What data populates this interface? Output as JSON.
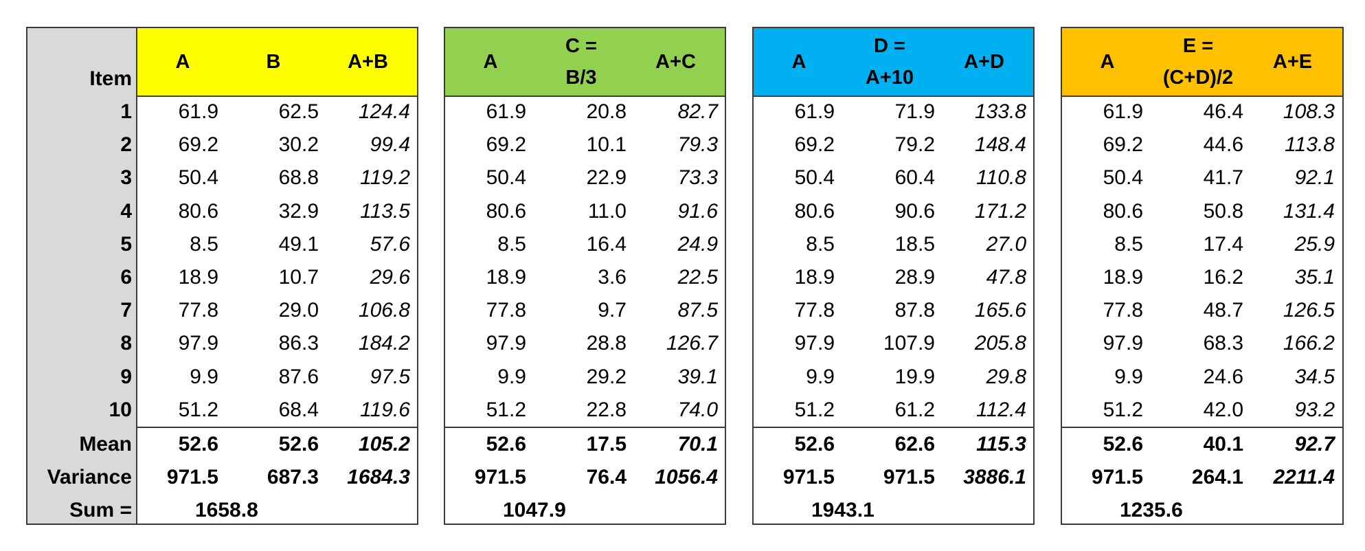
{
  "row_label_header": "Item",
  "items": [
    "1",
    "2",
    "3",
    "4",
    "5",
    "6",
    "7",
    "8",
    "9",
    "10"
  ],
  "stat_labels": {
    "mean": "Mean",
    "variance": "Variance",
    "sum": "Sum ="
  },
  "blocks": [
    {
      "color": "#ffff00",
      "headers": [
        [
          "A"
        ],
        [
          "B"
        ],
        [
          "A+B"
        ]
      ],
      "rows": [
        [
          "61.9",
          "62.5",
          "124.4"
        ],
        [
          "69.2",
          "30.2",
          "99.4"
        ],
        [
          "50.4",
          "68.8",
          "119.2"
        ],
        [
          "80.6",
          "32.9",
          "113.5"
        ],
        [
          "8.5",
          "49.1",
          "57.6"
        ],
        [
          "18.9",
          "10.7",
          "29.6"
        ],
        [
          "77.8",
          "29.0",
          "106.8"
        ],
        [
          "97.9",
          "86.3",
          "184.2"
        ],
        [
          "9.9",
          "87.6",
          "97.5"
        ],
        [
          "51.2",
          "68.4",
          "119.6"
        ]
      ],
      "mean": [
        "52.6",
        "52.6",
        "105.2"
      ],
      "variance": [
        "971.5",
        "687.3",
        "1684.3"
      ],
      "sum": "1658.8"
    },
    {
      "color": "#92d050",
      "headers": [
        [
          "A"
        ],
        [
          "C  =",
          "B/3"
        ],
        [
          "A+C"
        ]
      ],
      "rows": [
        [
          "61.9",
          "20.8",
          "82.7"
        ],
        [
          "69.2",
          "10.1",
          "79.3"
        ],
        [
          "50.4",
          "22.9",
          "73.3"
        ],
        [
          "80.6",
          "11.0",
          "91.6"
        ],
        [
          "8.5",
          "16.4",
          "24.9"
        ],
        [
          "18.9",
          "3.6",
          "22.5"
        ],
        [
          "77.8",
          "9.7",
          "87.5"
        ],
        [
          "97.9",
          "28.8",
          "126.7"
        ],
        [
          "9.9",
          "29.2",
          "39.1"
        ],
        [
          "51.2",
          "22.8",
          "74.0"
        ]
      ],
      "mean": [
        "52.6",
        "17.5",
        "70.1"
      ],
      "variance": [
        "971.5",
        "76.4",
        "1056.4"
      ],
      "sum": "1047.9"
    },
    {
      "color": "#00b0f0",
      "headers": [
        [
          "A"
        ],
        [
          "D =",
          "A+10"
        ],
        [
          "A+D"
        ]
      ],
      "rows": [
        [
          "61.9",
          "71.9",
          "133.8"
        ],
        [
          "69.2",
          "79.2",
          "148.4"
        ],
        [
          "50.4",
          "60.4",
          "110.8"
        ],
        [
          "80.6",
          "90.6",
          "171.2"
        ],
        [
          "8.5",
          "18.5",
          "27.0"
        ],
        [
          "18.9",
          "28.9",
          "47.8"
        ],
        [
          "77.8",
          "87.8",
          "165.6"
        ],
        [
          "97.9",
          "107.9",
          "205.8"
        ],
        [
          "9.9",
          "19.9",
          "29.8"
        ],
        [
          "51.2",
          "61.2",
          "112.4"
        ]
      ],
      "mean": [
        "52.6",
        "62.6",
        "115.3"
      ],
      "variance": [
        "971.5",
        "971.5",
        "3886.1"
      ],
      "sum": "1943.1"
    },
    {
      "color": "#ffc000",
      "headers": [
        [
          "A"
        ],
        [
          "E =",
          "(C+D)/2"
        ],
        [
          "A+E"
        ]
      ],
      "rows": [
        [
          "61.9",
          "46.4",
          "108.3"
        ],
        [
          "69.2",
          "44.6",
          "113.8"
        ],
        [
          "50.4",
          "41.7",
          "92.1"
        ],
        [
          "80.6",
          "50.8",
          "131.4"
        ],
        [
          "8.5",
          "17.4",
          "25.9"
        ],
        [
          "18.9",
          "16.2",
          "35.1"
        ],
        [
          "77.8",
          "48.7",
          "126.5"
        ],
        [
          "97.9",
          "68.3",
          "166.2"
        ],
        [
          "9.9",
          "24.6",
          "34.5"
        ],
        [
          "51.2",
          "42.0",
          "93.2"
        ]
      ],
      "mean": [
        "52.6",
        "40.1",
        "92.7"
      ],
      "variance": [
        "971.5",
        "264.1",
        "2211.4"
      ],
      "sum": "1235.6"
    }
  ]
}
